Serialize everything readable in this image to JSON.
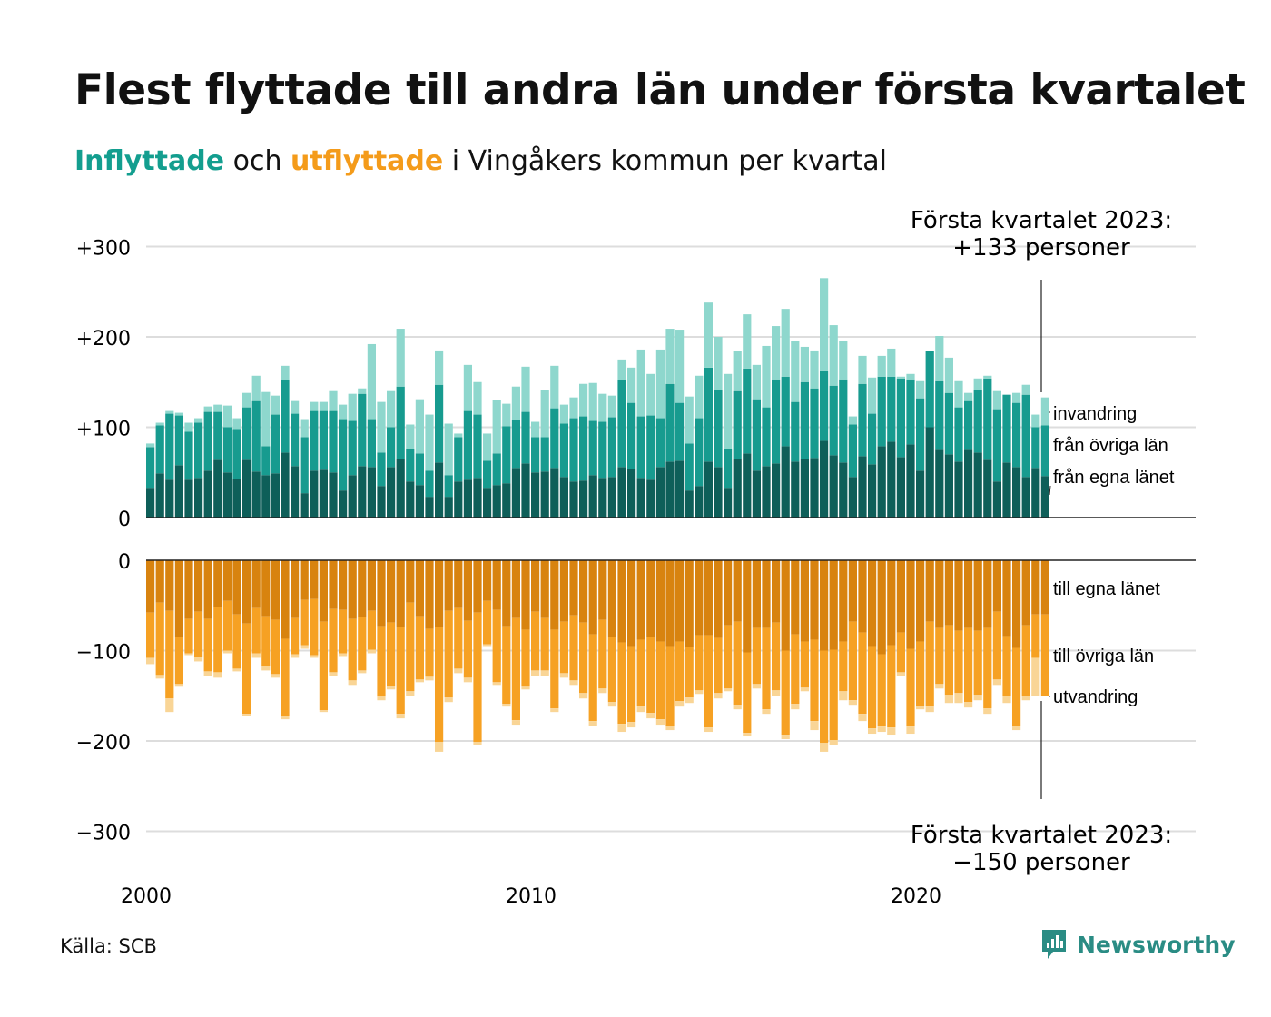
{
  "title": "Flest flyttade till andra län under första kvartalet",
  "subtitle": {
    "part1": "Inflyttade",
    "part2": " och ",
    "part3": "utflyttade",
    "part4": " i Vingåkers kommun per kvartal"
  },
  "source": "Källa: SCB",
  "brand": "Newsworthy",
  "colors": {
    "in_dark": "#0e5f59",
    "in_mid": "#179b8f",
    "in_light": "#8ed7cd",
    "out_dark": "#d8830f",
    "out_mid": "#f6a123",
    "out_light": "#f9d596",
    "grid": "#dddddd",
    "brand": "#2a8c84"
  },
  "chart_data": {
    "type": "bar",
    "stacked": true,
    "x_start": 2000,
    "x_ticks": [
      "2000",
      "2010",
      "2020"
    ],
    "y_ticks_top": [
      "+300",
      "+200",
      "+100",
      "0"
    ],
    "y_ticks_bottom": [
      "0",
      "−100",
      "−200",
      "−300"
    ],
    "ylim_top": [
      0,
      300
    ],
    "ylim_bottom": [
      -300,
      0
    ],
    "series_labels": {
      "invandring": "invandring",
      "fran_ovriga": "från övriga län",
      "fran_egna": "från egna länet",
      "till_egna": "till egna länet",
      "till_ovriga": "till övriga län",
      "utvandring": "utvandring"
    },
    "annotation_top": [
      "Första kvartalet 2023:",
      "+133 personer"
    ],
    "annotation_bottom": [
      "Första kvartalet 2023:",
      "−150 personer"
    ],
    "in_total": [
      82,
      105,
      118,
      116,
      105,
      110,
      123,
      125,
      124,
      110,
      138,
      157,
      139,
      135,
      168,
      129,
      109,
      128,
      128,
      140,
      125,
      137,
      143,
      192,
      128,
      140,
      209,
      103,
      131,
      114,
      185,
      104,
      93,
      169,
      150,
      93,
      130,
      126,
      145,
      167,
      106,
      141,
      168,
      125,
      133,
      148,
      149,
      137,
      135,
      175,
      166,
      186,
      159,
      186,
      209,
      208,
      134,
      157,
      238,
      200,
      159,
      184,
      225,
      169,
      190,
      212,
      231,
      195,
      189,
      185,
      265,
      213,
      196,
      112,
      179,
      155,
      179,
      187,
      156,
      159,
      151,
      141,
      201,
      177,
      151,
      138,
      154,
      157,
      140,
      136,
      138,
      147,
      114,
      133
    ],
    "in_egna": [
      33,
      49,
      42,
      58,
      42,
      44,
      52,
      64,
      50,
      43,
      64,
      51,
      47,
      49,
      72,
      57,
      27,
      52,
      53,
      50,
      30,
      47,
      57,
      56,
      35,
      56,
      65,
      40,
      36,
      23,
      61,
      23,
      40,
      42,
      44,
      33,
      36,
      38,
      55,
      60,
      50,
      51,
      55,
      45,
      40,
      41,
      47,
      44,
      45,
      56,
      54,
      44,
      42,
      56,
      62,
      63,
      30,
      35,
      62,
      56,
      33,
      65,
      71,
      52,
      57,
      60,
      79,
      62,
      65,
      66,
      85,
      69,
      61,
      45,
      68,
      59,
      79,
      84,
      67,
      81,
      52,
      100,
      75,
      70,
      62,
      75,
      72,
      64,
      40,
      61,
      56,
      45,
      55,
      46
    ],
    "in_fran_ovriga": [
      45,
      53,
      73,
      55,
      53,
      61,
      65,
      53,
      50,
      55,
      58,
      78,
      32,
      65,
      80,
      58,
      62,
      66,
      65,
      68,
      79,
      60,
      80,
      53,
      37,
      44,
      80,
      36,
      35,
      29,
      86,
      24,
      49,
      76,
      70,
      30,
      35,
      63,
      53,
      57,
      39,
      38,
      66,
      59,
      70,
      71,
      60,
      62,
      66,
      96,
      73,
      68,
      71,
      54,
      86,
      64,
      52,
      75,
      104,
      85,
      43,
      75,
      94,
      79,
      65,
      93,
      77,
      66,
      85,
      77,
      77,
      77,
      92,
      58,
      80,
      56,
      77,
      72,
      87,
      72,
      80,
      84,
      76,
      68,
      60,
      54,
      69,
      90,
      80,
      75,
      71,
      91,
      45,
      56
    ],
    "out_total": [
      -115,
      -131,
      -168,
      -140,
      -105,
      -112,
      -128,
      -130,
      -103,
      -123,
      -172,
      -108,
      -122,
      -130,
      -176,
      -108,
      -98,
      -108,
      -168,
      -128,
      -106,
      -138,
      -125,
      -103,
      -155,
      -143,
      -175,
      -150,
      -135,
      -133,
      -212,
      -157,
      -125,
      -135,
      -205,
      -95,
      -138,
      -162,
      -182,
      -143,
      -128,
      -128,
      -168,
      -130,
      -138,
      -153,
      -183,
      -147,
      -162,
      -190,
      -185,
      -168,
      -175,
      -182,
      -188,
      -162,
      -158,
      -148,
      -190,
      -153,
      -145,
      -165,
      -195,
      -142,
      -170,
      -150,
      -198,
      -165,
      -145,
      -188,
      -212,
      -205,
      -155,
      -160,
      -178,
      -192,
      -190,
      -193,
      -128,
      -192,
      -165,
      -168,
      -142,
      -158,
      -158,
      -163,
      -155,
      -170,
      -138,
      -158,
      -188,
      -155,
      -150,
      -150
    ],
    "out_till_egna": [
      -58,
      -47,
      -56,
      -85,
      -65,
      -57,
      -65,
      -52,
      -45,
      -60,
      -70,
      -53,
      -62,
      -66,
      -87,
      -64,
      -44,
      -43,
      -68,
      -54,
      -55,
      -65,
      -63,
      -56,
      -73,
      -69,
      -74,
      -47,
      -62,
      -76,
      -74,
      -56,
      -53,
      -67,
      -58,
      -45,
      -55,
      -73,
      -64,
      -77,
      -57,
      -64,
      -77,
      -68,
      -61,
      -69,
      -82,
      -66,
      -85,
      -91,
      -95,
      -88,
      -85,
      -90,
      -95,
      -90,
      -96,
      -83,
      -83,
      -86,
      -72,
      -68,
      -102,
      -75,
      -75,
      -69,
      -100,
      -82,
      -90,
      -88,
      -100,
      -99,
      -90,
      -68,
      -80,
      -95,
      -104,
      -94,
      -80,
      -98,
      -90,
      -68,
      -75,
      -72,
      -78,
      -75,
      -78,
      -75,
      -57,
      -84,
      -97,
      -72,
      -60,
      -60
    ],
    "out_till_ovriga": [
      -50,
      -80,
      -97,
      -52,
      -38,
      -50,
      -58,
      -72,
      -55,
      -60,
      -100,
      -50,
      -55,
      -60,
      -85,
      -40,
      -50,
      -62,
      -98,
      -70,
      -48,
      -68,
      -59,
      -43,
      -78,
      -70,
      -96,
      -98,
      -70,
      -53,
      -127,
      -96,
      -67,
      -63,
      -143,
      -48,
      -80,
      -86,
      -113,
      -63,
      -65,
      -58,
      -87,
      -57,
      -72,
      -78,
      -96,
      -76,
      -72,
      -90,
      -84,
      -74,
      -84,
      -86,
      -88,
      -66,
      -56,
      -61,
      -102,
      -61,
      -70,
      -92,
      -89,
      -62,
      -90,
      -75,
      -93,
      -77,
      -51,
      -90,
      -102,
      -100,
      -55,
      -87,
      -90,
      -91,
      -80,
      -91,
      -44,
      -86,
      -71,
      -94,
      -62,
      -77,
      -69,
      -82,
      -71,
      -89,
      -75,
      -66,
      -86,
      -78,
      -48,
      -90
    ]
  }
}
